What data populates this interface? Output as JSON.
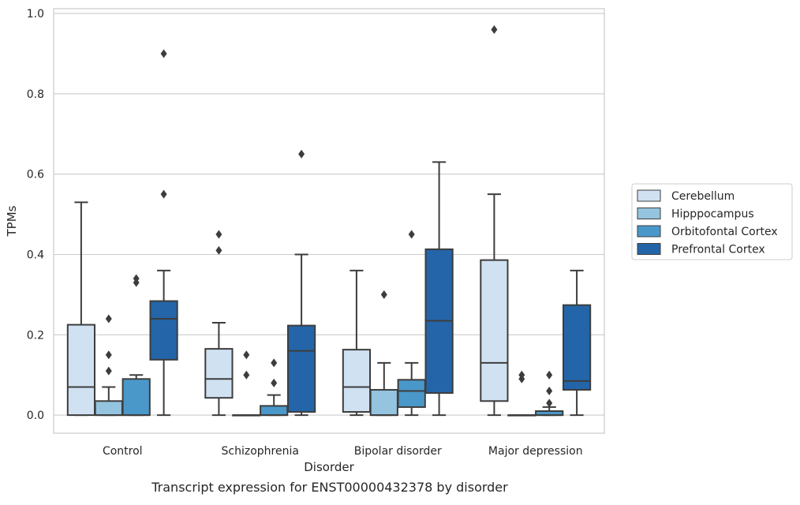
{
  "chart_data": {
    "type": "box",
    "title": "",
    "caption": "Transcript expression for ENST00000432378 by disorder",
    "xlabel": "Disorder",
    "ylabel": "TPMs",
    "ylim": [
      -0.045,
      1.012
    ],
    "yticks": [
      "0.0",
      "0.2",
      "0.4",
      "0.6",
      "0.8",
      "1.0"
    ],
    "yticks_values": [
      0.0,
      0.2,
      0.4,
      0.6,
      0.8,
      1.0
    ],
    "grid": "horizontal",
    "legend_position": "right",
    "categories": [
      "Control",
      "Schizophrenia",
      "Bipolar disorder",
      "Major depression"
    ],
    "series": [
      {
        "name": "Cerebellum",
        "color": "#d0e1f2",
        "boxes": [
          {
            "whislo": 0.0,
            "q1": 0.0,
            "med": 0.07,
            "q3": 0.225,
            "whishi": 0.53,
            "fliers": []
          },
          {
            "whislo": 0.0,
            "q1": 0.043,
            "med": 0.09,
            "q3": 0.165,
            "whishi": 0.23,
            "fliers": [
              0.41,
              0.45
            ]
          },
          {
            "whislo": 0.0,
            "q1": 0.008,
            "med": 0.07,
            "q3": 0.163,
            "whishi": 0.36,
            "fliers": []
          },
          {
            "whislo": 0.0,
            "q1": 0.035,
            "med": 0.13,
            "q3": 0.386,
            "whishi": 0.55,
            "fliers": [
              0.96
            ]
          }
        ]
      },
      {
        "name": "Hipppocampus",
        "color": "#94c4df",
        "boxes": [
          {
            "whislo": 0.0,
            "q1": 0.0,
            "med": 0.0,
            "q3": 0.035,
            "whishi": 0.07,
            "fliers": [
              0.11,
              0.15,
              0.24
            ]
          },
          {
            "whislo": 0.0,
            "q1": 0.0,
            "med": 0.0,
            "q3": 0.0,
            "whishi": 0.0,
            "fliers": [
              0.1,
              0.15
            ]
          },
          {
            "whislo": 0.0,
            "q1": 0.0,
            "med": 0.0,
            "q3": 0.063,
            "whishi": 0.13,
            "fliers": [
              0.3
            ]
          },
          {
            "whislo": 0.0,
            "q1": 0.0,
            "med": 0.0,
            "q3": 0.0,
            "whishi": 0.0,
            "fliers": [
              0.09,
              0.1
            ]
          }
        ]
      },
      {
        "name": "Orbitofontal Cortex",
        "color": "#4a98c9",
        "boxes": [
          {
            "whislo": 0.0,
            "q1": 0.0,
            "med": 0.0,
            "q3": 0.09,
            "whishi": 0.1,
            "fliers": [
              0.33,
              0.34
            ]
          },
          {
            "whislo": 0.0,
            "q1": 0.0,
            "med": 0.0,
            "q3": 0.023,
            "whishi": 0.05,
            "fliers": [
              0.08,
              0.13
            ]
          },
          {
            "whislo": 0.0,
            "q1": 0.02,
            "med": 0.06,
            "q3": 0.088,
            "whishi": 0.13,
            "fliers": [
              0.45
            ]
          },
          {
            "whislo": 0.0,
            "q1": 0.0,
            "med": 0.0,
            "q3": 0.01,
            "whishi": 0.02,
            "fliers": [
              0.03,
              0.06,
              0.1
            ]
          }
        ]
      },
      {
        "name": "Prefrontal Cortex",
        "color": "#2365a8",
        "boxes": [
          {
            "whislo": 0.0,
            "q1": 0.138,
            "med": 0.24,
            "q3": 0.284,
            "whishi": 0.36,
            "fliers": [
              0.55,
              0.9
            ]
          },
          {
            "whislo": 0.0,
            "q1": 0.008,
            "med": 0.16,
            "q3": 0.223,
            "whishi": 0.4,
            "fliers": [
              0.65
            ]
          },
          {
            "whislo": 0.0,
            "q1": 0.055,
            "med": 0.235,
            "q3": 0.413,
            "whishi": 0.63,
            "fliers": []
          },
          {
            "whislo": 0.0,
            "q1": 0.063,
            "med": 0.085,
            "q3": 0.274,
            "whishi": 0.36,
            "fliers": []
          }
        ]
      }
    ]
  }
}
